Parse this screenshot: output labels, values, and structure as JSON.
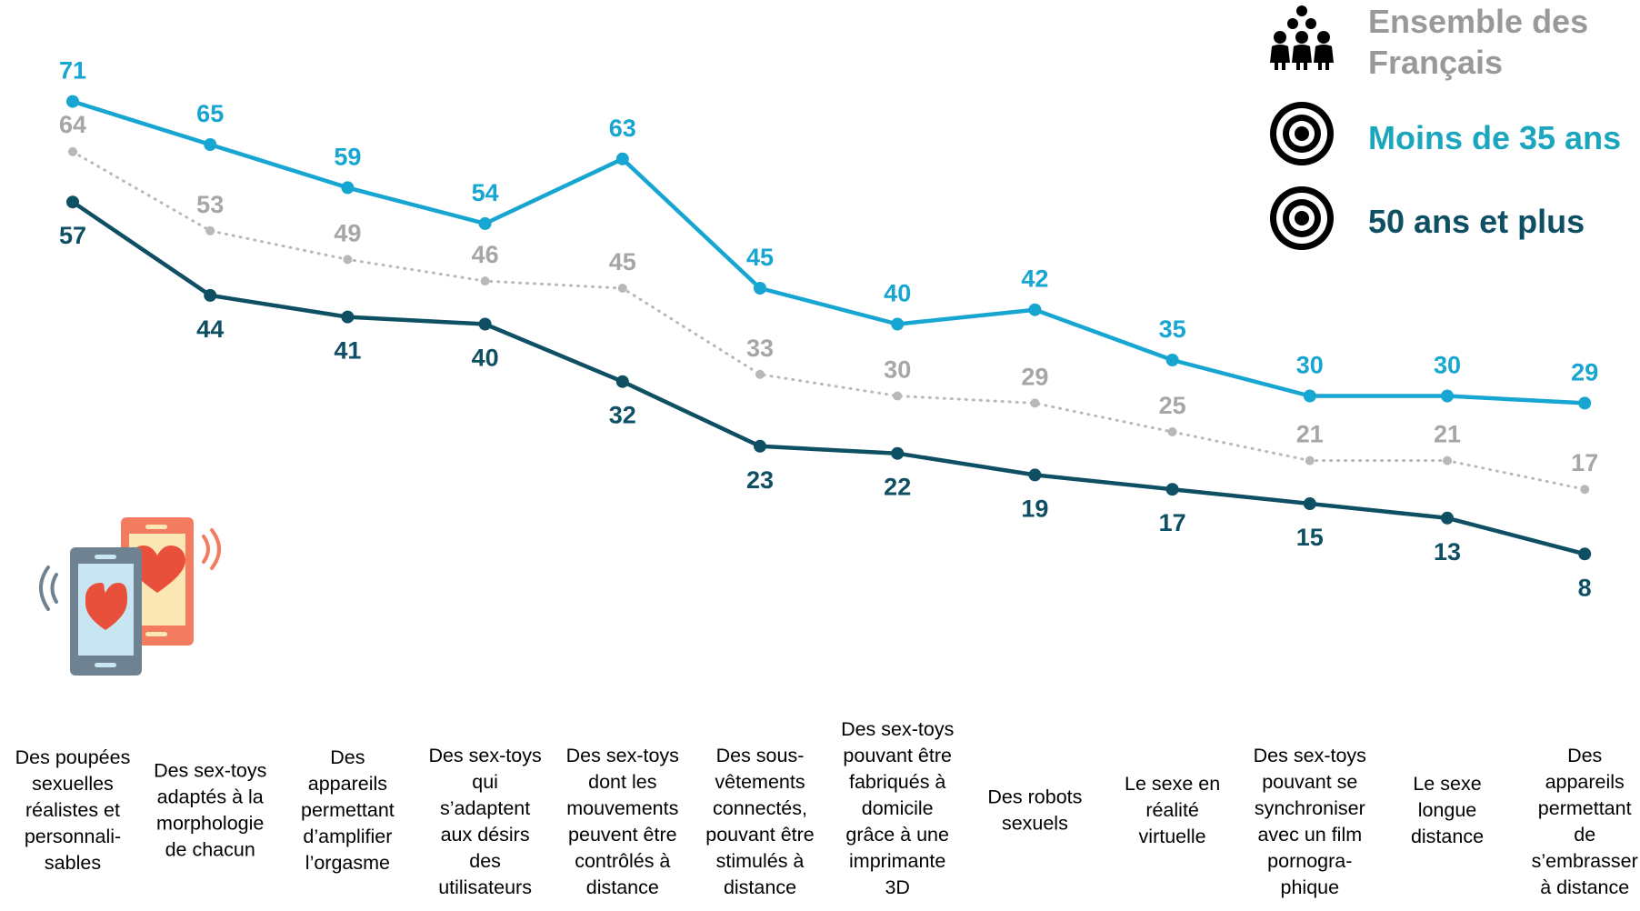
{
  "colors": {
    "ensemble": "#b8b8b8",
    "moins35": "#17a5d1",
    "plus50": "#0e4f63"
  },
  "legend": [
    {
      "label_lines": [
        "Ensemble des",
        "Français"
      ],
      "icon": "people-group-icon",
      "color": "#999999"
    },
    {
      "label_lines": [
        "Moins de 35 ans"
      ],
      "icon": "target-icon",
      "color": "#1aa6bd"
    },
    {
      "label_lines": [
        "50 ans et plus"
      ],
      "icon": "target-icon",
      "color": "#0e4f63"
    }
  ],
  "decor": {
    "icon": "phones-heart-icon"
  },
  "chart_data": {
    "type": "line",
    "legend_position": "top-right",
    "grid": false,
    "ylim": [
      0,
      75
    ],
    "categories": [
      [
        "Des poupées",
        "sexuelles",
        "réalistes et",
        "personnali-",
        "sables"
      ],
      [
        "Des sex-toys",
        "adaptés à la",
        "morphologie",
        "de chacun"
      ],
      [
        "Des",
        "appareils",
        "permettant",
        "d’amplifier",
        "l’orgasme"
      ],
      [
        "Des sex-toys",
        "qui",
        "s’adaptent",
        "aux désirs",
        "des",
        "utilisateurs"
      ],
      [
        "Des sex-toys",
        "dont les",
        "mouvements",
        "peuvent être",
        "contrôlés à",
        "distance"
      ],
      [
        "Des sous-",
        "vêtements",
        "connectés,",
        "pouvant être",
        "stimulés à",
        "distance"
      ],
      [
        "Des sex-toys",
        "pouvant être",
        "fabriqués à",
        "domicile",
        "grâce à une",
        "imprimante",
        "3D"
      ],
      [
        "Des robots",
        "sexuels"
      ],
      [
        "Le sexe en",
        "réalité",
        "virtuelle"
      ],
      [
        "Des sex-toys",
        "pouvant se",
        "synchroniser",
        "avec un film",
        "pornogra-",
        "phique"
      ],
      [
        "Le sexe",
        "longue",
        "distance"
      ],
      [
        "Des",
        "appareils",
        "permettant",
        "de",
        "s’embrasser",
        "à distance"
      ]
    ],
    "series": [
      {
        "name": "Ensemble des Français",
        "key": "ensemble",
        "style": "dotted",
        "values": [
          64,
          53,
          49,
          46,
          45,
          33,
          30,
          29,
          25,
          21,
          21,
          17
        ]
      },
      {
        "name": "Moins de 35 ans",
        "key": "moins35",
        "style": "solid",
        "values": [
          71,
          65,
          59,
          54,
          63,
          45,
          40,
          42,
          35,
          30,
          30,
          29
        ]
      },
      {
        "name": "50 ans et plus",
        "key": "plus50",
        "style": "solid",
        "values": [
          57,
          44,
          41,
          40,
          32,
          23,
          22,
          19,
          17,
          15,
          13,
          8
        ]
      }
    ]
  }
}
